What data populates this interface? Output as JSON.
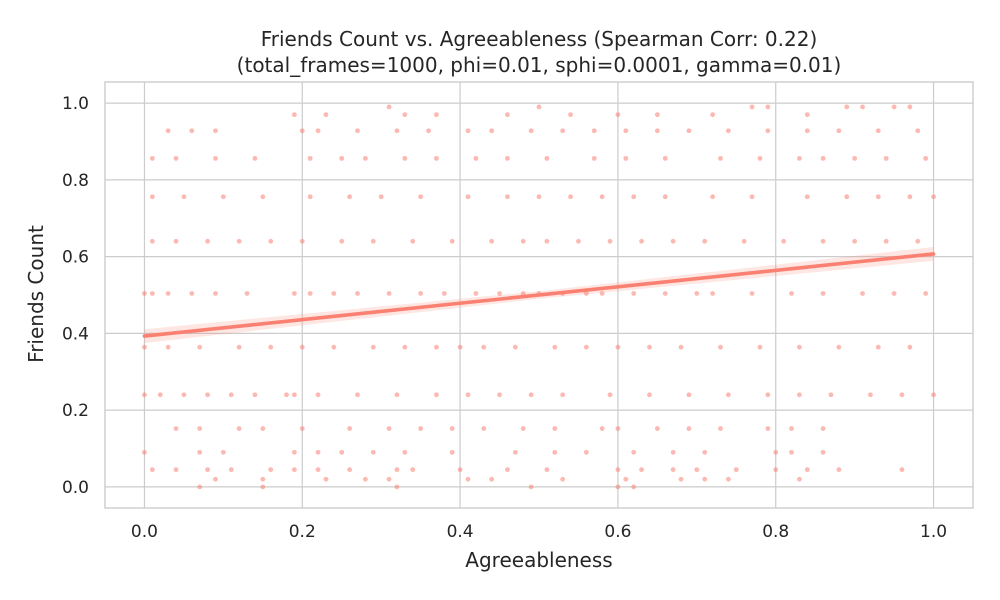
{
  "chart_data": {
    "type": "scatter",
    "title": "Friends Count vs. Agreeableness (Spearman Corr: 0.22)",
    "subtitle": "(total_frames=1000, phi=0.01, sphi=0.0001, gamma=0.01)",
    "xlabel": "Agreeableness",
    "ylabel": "Friends Count",
    "xlim": [
      -0.05,
      1.05
    ],
    "ylim": [
      -0.055,
      1.055
    ],
    "x_ticks": [
      0.0,
      0.2,
      0.4,
      0.6,
      0.8,
      1.0
    ],
    "x_tick_labels": [
      "0.0",
      "0.2",
      "0.4",
      "0.6",
      "0.8",
      "1.0"
    ],
    "y_ticks": [
      0.0,
      0.2,
      0.4,
      0.6,
      0.8,
      1.0
    ],
    "y_tick_labels": [
      "0.0",
      "0.2",
      "0.4",
      "0.6",
      "0.8",
      "1.0"
    ],
    "grid": true,
    "legend": "none",
    "point_color": "#fa8072",
    "line_color": "#fa8072",
    "regression": {
      "intercept": 0.393,
      "slope": 0.214,
      "ci_halfwidth": 0.018
    },
    "y_levels": [
      0.0,
      0.045,
      0.09,
      0.152,
      0.24,
      0.364,
      0.504,
      0.64,
      0.756,
      0.856,
      0.928,
      0.99
    ],
    "points": [
      {
        "x": 0.0,
        "y": 0.504
      },
      {
        "x": 0.01,
        "y": 0.504
      },
      {
        "x": 0.03,
        "y": 0.504
      },
      {
        "x": 0.06,
        "y": 0.504
      },
      {
        "x": 0.09,
        "y": 0.504
      },
      {
        "x": 0.13,
        "y": 0.504
      },
      {
        "x": 0.19,
        "y": 0.504
      },
      {
        "x": 0.21,
        "y": 0.504
      },
      {
        "x": 0.24,
        "y": 0.504
      },
      {
        "x": 0.27,
        "y": 0.504
      },
      {
        "x": 0.31,
        "y": 0.504
      },
      {
        "x": 0.35,
        "y": 0.504
      },
      {
        "x": 0.38,
        "y": 0.504
      },
      {
        "x": 0.42,
        "y": 0.504
      },
      {
        "x": 0.45,
        "y": 0.504
      },
      {
        "x": 0.48,
        "y": 0.504
      },
      {
        "x": 0.5,
        "y": 0.504
      },
      {
        "x": 0.53,
        "y": 0.504
      },
      {
        "x": 0.56,
        "y": 0.504
      },
      {
        "x": 0.58,
        "y": 0.504
      },
      {
        "x": 0.62,
        "y": 0.504
      },
      {
        "x": 0.66,
        "y": 0.504
      },
      {
        "x": 0.7,
        "y": 0.504
      },
      {
        "x": 0.72,
        "y": 0.504
      },
      {
        "x": 0.77,
        "y": 0.504
      },
      {
        "x": 0.82,
        "y": 0.504
      },
      {
        "x": 0.86,
        "y": 0.504
      },
      {
        "x": 0.91,
        "y": 0.504
      },
      {
        "x": 0.95,
        "y": 0.504
      },
      {
        "x": 0.99,
        "y": 0.504
      },
      {
        "x": 0.0,
        "y": 0.24
      },
      {
        "x": 0.02,
        "y": 0.24
      },
      {
        "x": 0.05,
        "y": 0.24
      },
      {
        "x": 0.08,
        "y": 0.24
      },
      {
        "x": 0.11,
        "y": 0.24
      },
      {
        "x": 0.14,
        "y": 0.24
      },
      {
        "x": 0.18,
        "y": 0.24
      },
      {
        "x": 0.19,
        "y": 0.24
      },
      {
        "x": 0.22,
        "y": 0.24
      },
      {
        "x": 0.27,
        "y": 0.24
      },
      {
        "x": 0.32,
        "y": 0.24
      },
      {
        "x": 0.37,
        "y": 0.24
      },
      {
        "x": 0.41,
        "y": 0.24
      },
      {
        "x": 0.45,
        "y": 0.24
      },
      {
        "x": 0.49,
        "y": 0.24
      },
      {
        "x": 0.53,
        "y": 0.24
      },
      {
        "x": 0.59,
        "y": 0.24
      },
      {
        "x": 0.64,
        "y": 0.24
      },
      {
        "x": 0.69,
        "y": 0.24
      },
      {
        "x": 0.74,
        "y": 0.24
      },
      {
        "x": 0.79,
        "y": 0.24
      },
      {
        "x": 0.83,
        "y": 0.24
      },
      {
        "x": 0.87,
        "y": 0.24
      },
      {
        "x": 0.92,
        "y": 0.24
      },
      {
        "x": 0.96,
        "y": 0.24
      },
      {
        "x": 1.0,
        "y": 0.24
      },
      {
        "x": 0.0,
        "y": 0.364
      },
      {
        "x": 0.03,
        "y": 0.364
      },
      {
        "x": 0.07,
        "y": 0.364
      },
      {
        "x": 0.12,
        "y": 0.364
      },
      {
        "x": 0.16,
        "y": 0.364
      },
      {
        "x": 0.2,
        "y": 0.364
      },
      {
        "x": 0.24,
        "y": 0.364
      },
      {
        "x": 0.29,
        "y": 0.364
      },
      {
        "x": 0.33,
        "y": 0.364
      },
      {
        "x": 0.37,
        "y": 0.364
      },
      {
        "x": 0.4,
        "y": 0.364
      },
      {
        "x": 0.43,
        "y": 0.364
      },
      {
        "x": 0.47,
        "y": 0.364
      },
      {
        "x": 0.52,
        "y": 0.364
      },
      {
        "x": 0.56,
        "y": 0.364
      },
      {
        "x": 0.6,
        "y": 0.364
      },
      {
        "x": 0.64,
        "y": 0.364
      },
      {
        "x": 0.68,
        "y": 0.364
      },
      {
        "x": 0.73,
        "y": 0.364
      },
      {
        "x": 0.78,
        "y": 0.364
      },
      {
        "x": 0.83,
        "y": 0.364
      },
      {
        "x": 0.88,
        "y": 0.364
      },
      {
        "x": 0.93,
        "y": 0.364
      },
      {
        "x": 0.97,
        "y": 0.364
      },
      {
        "x": 0.01,
        "y": 0.64
      },
      {
        "x": 0.04,
        "y": 0.64
      },
      {
        "x": 0.08,
        "y": 0.64
      },
      {
        "x": 0.12,
        "y": 0.64
      },
      {
        "x": 0.16,
        "y": 0.64
      },
      {
        "x": 0.2,
        "y": 0.64
      },
      {
        "x": 0.25,
        "y": 0.64
      },
      {
        "x": 0.29,
        "y": 0.64
      },
      {
        "x": 0.34,
        "y": 0.64
      },
      {
        "x": 0.39,
        "y": 0.64
      },
      {
        "x": 0.44,
        "y": 0.64
      },
      {
        "x": 0.48,
        "y": 0.64
      },
      {
        "x": 0.51,
        "y": 0.64
      },
      {
        "x": 0.55,
        "y": 0.64
      },
      {
        "x": 0.59,
        "y": 0.64
      },
      {
        "x": 0.63,
        "y": 0.64
      },
      {
        "x": 0.67,
        "y": 0.64
      },
      {
        "x": 0.71,
        "y": 0.64
      },
      {
        "x": 0.76,
        "y": 0.64
      },
      {
        "x": 0.81,
        "y": 0.64
      },
      {
        "x": 0.86,
        "y": 0.64
      },
      {
        "x": 0.9,
        "y": 0.64
      },
      {
        "x": 0.94,
        "y": 0.64
      },
      {
        "x": 0.98,
        "y": 0.64
      },
      {
        "x": 0.01,
        "y": 0.756
      },
      {
        "x": 0.05,
        "y": 0.756
      },
      {
        "x": 0.1,
        "y": 0.756
      },
      {
        "x": 0.15,
        "y": 0.756
      },
      {
        "x": 0.21,
        "y": 0.756
      },
      {
        "x": 0.26,
        "y": 0.756
      },
      {
        "x": 0.3,
        "y": 0.756
      },
      {
        "x": 0.35,
        "y": 0.756
      },
      {
        "x": 0.41,
        "y": 0.756
      },
      {
        "x": 0.46,
        "y": 0.756
      },
      {
        "x": 0.5,
        "y": 0.756
      },
      {
        "x": 0.54,
        "y": 0.756
      },
      {
        "x": 0.58,
        "y": 0.756
      },
      {
        "x": 0.62,
        "y": 0.756
      },
      {
        "x": 0.66,
        "y": 0.756
      },
      {
        "x": 0.72,
        "y": 0.756
      },
      {
        "x": 0.77,
        "y": 0.756
      },
      {
        "x": 0.84,
        "y": 0.756
      },
      {
        "x": 0.89,
        "y": 0.756
      },
      {
        "x": 0.93,
        "y": 0.756
      },
      {
        "x": 0.97,
        "y": 0.756
      },
      {
        "x": 1.0,
        "y": 0.756
      },
      {
        "x": 0.01,
        "y": 0.856
      },
      {
        "x": 0.04,
        "y": 0.856
      },
      {
        "x": 0.09,
        "y": 0.856
      },
      {
        "x": 0.14,
        "y": 0.856
      },
      {
        "x": 0.21,
        "y": 0.856
      },
      {
        "x": 0.25,
        "y": 0.856
      },
      {
        "x": 0.28,
        "y": 0.856
      },
      {
        "x": 0.33,
        "y": 0.856
      },
      {
        "x": 0.37,
        "y": 0.856
      },
      {
        "x": 0.42,
        "y": 0.856
      },
      {
        "x": 0.46,
        "y": 0.856
      },
      {
        "x": 0.51,
        "y": 0.856
      },
      {
        "x": 0.57,
        "y": 0.856
      },
      {
        "x": 0.61,
        "y": 0.856
      },
      {
        "x": 0.66,
        "y": 0.856
      },
      {
        "x": 0.73,
        "y": 0.856
      },
      {
        "x": 0.78,
        "y": 0.856
      },
      {
        "x": 0.83,
        "y": 0.856
      },
      {
        "x": 0.86,
        "y": 0.856
      },
      {
        "x": 0.9,
        "y": 0.856
      },
      {
        "x": 0.94,
        "y": 0.856
      },
      {
        "x": 0.99,
        "y": 0.856
      },
      {
        "x": 0.03,
        "y": 0.928
      },
      {
        "x": 0.06,
        "y": 0.928
      },
      {
        "x": 0.09,
        "y": 0.928
      },
      {
        "x": 0.2,
        "y": 0.928
      },
      {
        "x": 0.22,
        "y": 0.928
      },
      {
        "x": 0.27,
        "y": 0.928
      },
      {
        "x": 0.32,
        "y": 0.928
      },
      {
        "x": 0.36,
        "y": 0.928
      },
      {
        "x": 0.41,
        "y": 0.928
      },
      {
        "x": 0.44,
        "y": 0.928
      },
      {
        "x": 0.49,
        "y": 0.928
      },
      {
        "x": 0.53,
        "y": 0.928
      },
      {
        "x": 0.57,
        "y": 0.928
      },
      {
        "x": 0.61,
        "y": 0.928
      },
      {
        "x": 0.65,
        "y": 0.928
      },
      {
        "x": 0.69,
        "y": 0.928
      },
      {
        "x": 0.74,
        "y": 0.928
      },
      {
        "x": 0.79,
        "y": 0.928
      },
      {
        "x": 0.84,
        "y": 0.928
      },
      {
        "x": 0.88,
        "y": 0.928
      },
      {
        "x": 0.93,
        "y": 0.928
      },
      {
        "x": 0.98,
        "y": 0.928
      },
      {
        "x": 0.19,
        "y": 0.97
      },
      {
        "x": 0.23,
        "y": 0.97
      },
      {
        "x": 0.31,
        "y": 0.99
      },
      {
        "x": 0.33,
        "y": 0.97
      },
      {
        "x": 0.37,
        "y": 0.97
      },
      {
        "x": 0.46,
        "y": 0.97
      },
      {
        "x": 0.5,
        "y": 0.99
      },
      {
        "x": 0.54,
        "y": 0.97
      },
      {
        "x": 0.6,
        "y": 0.97
      },
      {
        "x": 0.65,
        "y": 0.97
      },
      {
        "x": 0.72,
        "y": 0.97
      },
      {
        "x": 0.77,
        "y": 0.99
      },
      {
        "x": 0.79,
        "y": 0.99
      },
      {
        "x": 0.84,
        "y": 0.97
      },
      {
        "x": 0.89,
        "y": 0.99
      },
      {
        "x": 0.91,
        "y": 0.99
      },
      {
        "x": 0.95,
        "y": 0.99
      },
      {
        "x": 0.97,
        "y": 0.99
      },
      {
        "x": 0.04,
        "y": 0.152
      },
      {
        "x": 0.07,
        "y": 0.152
      },
      {
        "x": 0.12,
        "y": 0.152
      },
      {
        "x": 0.15,
        "y": 0.152
      },
      {
        "x": 0.2,
        "y": 0.152
      },
      {
        "x": 0.26,
        "y": 0.152
      },
      {
        "x": 0.31,
        "y": 0.152
      },
      {
        "x": 0.35,
        "y": 0.152
      },
      {
        "x": 0.39,
        "y": 0.152
      },
      {
        "x": 0.43,
        "y": 0.152
      },
      {
        "x": 0.48,
        "y": 0.152
      },
      {
        "x": 0.52,
        "y": 0.152
      },
      {
        "x": 0.58,
        "y": 0.152
      },
      {
        "x": 0.6,
        "y": 0.152
      },
      {
        "x": 0.65,
        "y": 0.152
      },
      {
        "x": 0.69,
        "y": 0.152
      },
      {
        "x": 0.73,
        "y": 0.152
      },
      {
        "x": 0.79,
        "y": 0.152
      },
      {
        "x": 0.82,
        "y": 0.152
      },
      {
        "x": 0.86,
        "y": 0.152
      },
      {
        "x": 0.0,
        "y": 0.09
      },
      {
        "x": 0.07,
        "y": 0.09
      },
      {
        "x": 0.1,
        "y": 0.09
      },
      {
        "x": 0.19,
        "y": 0.09
      },
      {
        "x": 0.22,
        "y": 0.09
      },
      {
        "x": 0.25,
        "y": 0.09
      },
      {
        "x": 0.29,
        "y": 0.09
      },
      {
        "x": 0.33,
        "y": 0.09
      },
      {
        "x": 0.39,
        "y": 0.09
      },
      {
        "x": 0.47,
        "y": 0.09
      },
      {
        "x": 0.52,
        "y": 0.09
      },
      {
        "x": 0.56,
        "y": 0.09
      },
      {
        "x": 0.62,
        "y": 0.09
      },
      {
        "x": 0.67,
        "y": 0.09
      },
      {
        "x": 0.71,
        "y": 0.09
      },
      {
        "x": 0.8,
        "y": 0.09
      },
      {
        "x": 0.82,
        "y": 0.09
      },
      {
        "x": 0.86,
        "y": 0.09
      },
      {
        "x": 0.01,
        "y": 0.045
      },
      {
        "x": 0.04,
        "y": 0.045
      },
      {
        "x": 0.08,
        "y": 0.045
      },
      {
        "x": 0.11,
        "y": 0.045
      },
      {
        "x": 0.16,
        "y": 0.045
      },
      {
        "x": 0.19,
        "y": 0.045
      },
      {
        "x": 0.22,
        "y": 0.045
      },
      {
        "x": 0.26,
        "y": 0.045
      },
      {
        "x": 0.32,
        "y": 0.045
      },
      {
        "x": 0.34,
        "y": 0.045
      },
      {
        "x": 0.4,
        "y": 0.045
      },
      {
        "x": 0.46,
        "y": 0.045
      },
      {
        "x": 0.51,
        "y": 0.045
      },
      {
        "x": 0.6,
        "y": 0.045
      },
      {
        "x": 0.63,
        "y": 0.045
      },
      {
        "x": 0.67,
        "y": 0.045
      },
      {
        "x": 0.7,
        "y": 0.045
      },
      {
        "x": 0.75,
        "y": 0.045
      },
      {
        "x": 0.8,
        "y": 0.045
      },
      {
        "x": 0.84,
        "y": 0.045
      },
      {
        "x": 0.88,
        "y": 0.045
      },
      {
        "x": 0.96,
        "y": 0.045
      },
      {
        "x": 0.07,
        "y": 0.0
      },
      {
        "x": 0.09,
        "y": 0.02
      },
      {
        "x": 0.15,
        "y": 0.02
      },
      {
        "x": 0.15,
        "y": 0.0
      },
      {
        "x": 0.23,
        "y": 0.02
      },
      {
        "x": 0.28,
        "y": 0.02
      },
      {
        "x": 0.31,
        "y": 0.02
      },
      {
        "x": 0.32,
        "y": 0.0
      },
      {
        "x": 0.41,
        "y": 0.02
      },
      {
        "x": 0.44,
        "y": 0.02
      },
      {
        "x": 0.49,
        "y": 0.0
      },
      {
        "x": 0.53,
        "y": 0.02
      },
      {
        "x": 0.6,
        "y": 0.0
      },
      {
        "x": 0.61,
        "y": 0.02
      },
      {
        "x": 0.62,
        "y": 0.0
      },
      {
        "x": 0.68,
        "y": 0.02
      },
      {
        "x": 0.71,
        "y": 0.02
      },
      {
        "x": 0.74,
        "y": 0.02
      },
      {
        "x": 0.83,
        "y": 0.02
      }
    ]
  }
}
